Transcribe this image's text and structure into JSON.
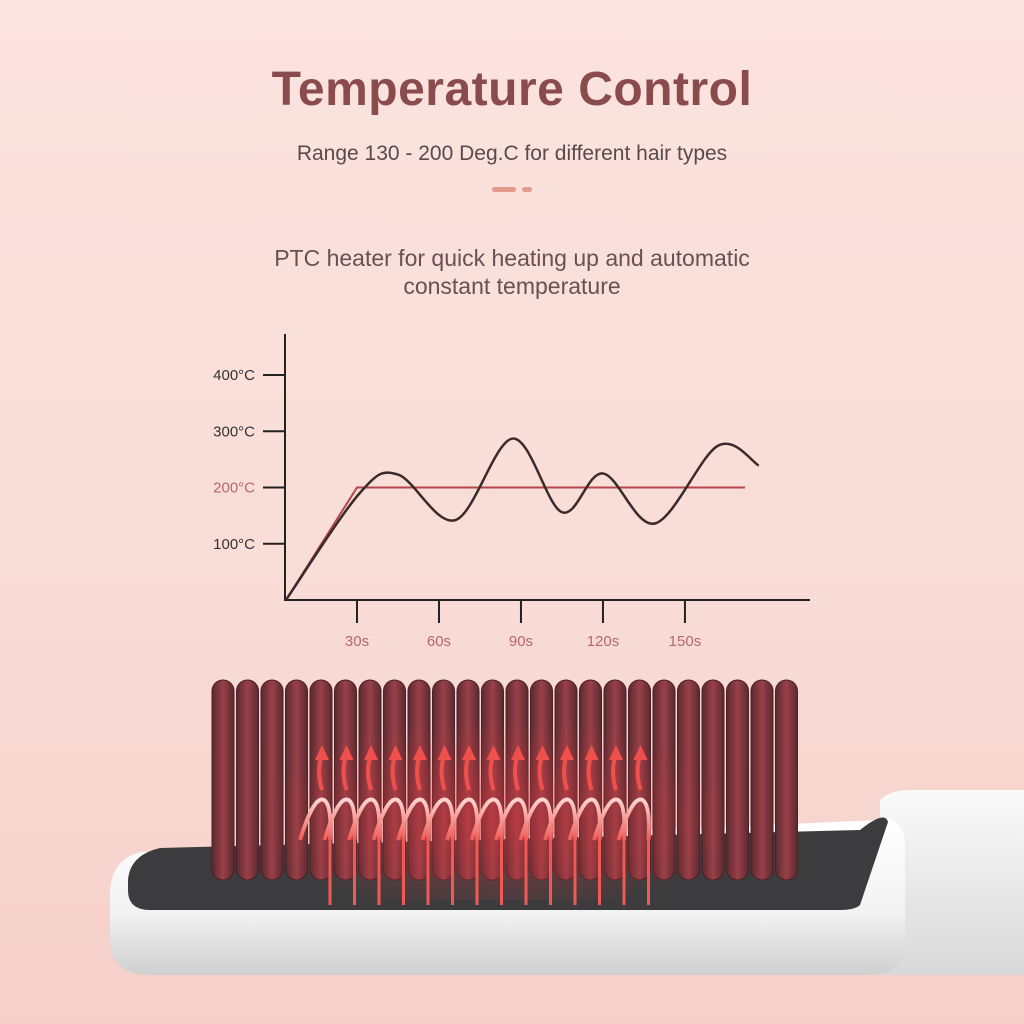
{
  "header": {
    "title": "Temperature Control",
    "subtitle": "Range 130 - 200 Deg.C for different hair types",
    "description_line1": "PTC heater for quick heating up and automatic",
    "description_line2": "constant temperature"
  },
  "colors": {
    "title": "#8a4b4d",
    "accent": "#e59a8c",
    "ptc_line": "#b5474a",
    "ordinary_line": "#3a2a2a",
    "highlight_tick": "#b5676a"
  },
  "chart_data": {
    "type": "line",
    "title": "",
    "xlabel": "",
    "ylabel": "",
    "x_ticks": [
      "30s",
      "60s",
      "90s",
      "120s",
      "150s"
    ],
    "x_tick_values": [
      30,
      60,
      90,
      120,
      150
    ],
    "y_ticks": [
      "100°C",
      "200°C",
      "300°C",
      "400°C"
    ],
    "y_tick_values": [
      100,
      200,
      300,
      400
    ],
    "highlighted_y_tick": "200°C",
    "ylim": [
      0,
      400
    ],
    "xlim": [
      4,
      190
    ],
    "grid": false,
    "series": [
      {
        "color": "#b5474a",
        "shape": "linear",
        "points": [
          [
            4,
            0
          ],
          [
            30,
            200
          ],
          [
            172,
            200
          ]
        ]
      },
      {
        "color": "#3a2a2a",
        "shape": "smooth",
        "points": [
          [
            4,
            0
          ],
          [
            31,
            190
          ],
          [
            45,
            223
          ],
          [
            66,
            142
          ],
          [
            87,
            287
          ],
          [
            105,
            156
          ],
          [
            120,
            225
          ],
          [
            139,
            136
          ],
          [
            162,
            274
          ],
          [
            177,
            239
          ]
        ]
      }
    ]
  },
  "product": {
    "icons": [
      "heat-up-arrow-icon",
      "heat-wave-icon"
    ]
  }
}
